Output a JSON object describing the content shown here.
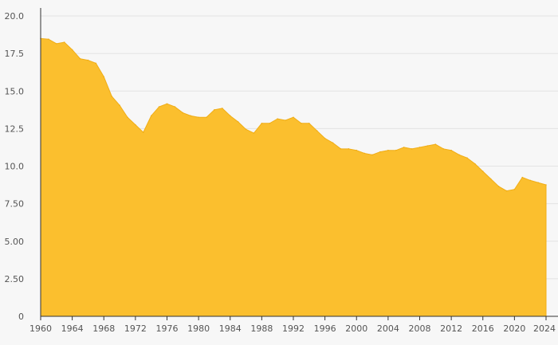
{
  "chart_data": {
    "type": "area",
    "title": "",
    "xlabel": "",
    "ylabel": "",
    "xlim": [
      1960,
      2024
    ],
    "ylim": [
      0,
      20
    ],
    "grid": true,
    "colors": {
      "fill": "#fbbf2e",
      "stroke": "#f0ad16",
      "grid": "#e3e3e3",
      "axis": "#333333",
      "text": "#555555",
      "background": "#f7f7f7"
    },
    "y_ticks": [
      "0",
      "2.50",
      "5.00",
      "7.50",
      "10.0",
      "12.5",
      "15.0",
      "17.5",
      "20.0"
    ],
    "x_ticks": [
      "1960",
      "1964",
      "1968",
      "1972",
      "1976",
      "1980",
      "1984",
      "1988",
      "1992",
      "1996",
      "2000",
      "2004",
      "2008",
      "2012",
      "2016",
      "2020",
      "2024"
    ],
    "x": [
      1960,
      1961,
      1962,
      1963,
      1964,
      1965,
      1966,
      1967,
      1968,
      1969,
      1970,
      1971,
      1972,
      1973,
      1974,
      1975,
      1976,
      1977,
      1978,
      1979,
      1980,
      1981,
      1982,
      1983,
      1984,
      1985,
      1986,
      1987,
      1988,
      1989,
      1990,
      1991,
      1992,
      1993,
      1994,
      1995,
      1996,
      1997,
      1998,
      1999,
      2000,
      2001,
      2002,
      2003,
      2004,
      2005,
      2006,
      2007,
      2008,
      2009,
      2010,
      2011,
      2012,
      2013,
      2014,
      2015,
      2016,
      2017,
      2018,
      2019,
      2020,
      2021,
      2022,
      2023,
      2024
    ],
    "values": [
      18.5,
      18.45,
      18.15,
      18.25,
      17.75,
      17.15,
      17.05,
      16.85,
      15.95,
      14.65,
      14.05,
      13.25,
      12.75,
      12.25,
      13.35,
      13.95,
      14.15,
      13.95,
      13.55,
      13.35,
      13.25,
      13.25,
      13.75,
      13.85,
      13.35,
      12.95,
      12.45,
      12.2,
      12.85,
      12.85,
      13.15,
      13.05,
      13.25,
      12.85,
      12.85,
      12.35,
      11.85,
      11.55,
      11.15,
      11.15,
      11.05,
      10.85,
      10.75,
      10.95,
      11.05,
      11.05,
      11.25,
      11.15,
      11.25,
      11.35,
      11.45,
      11.15,
      11.05,
      10.75,
      10.55,
      10.15,
      9.65,
      9.15,
      8.65,
      8.35,
      8.45,
      9.25,
      9.05,
      8.9,
      8.75
    ]
  }
}
